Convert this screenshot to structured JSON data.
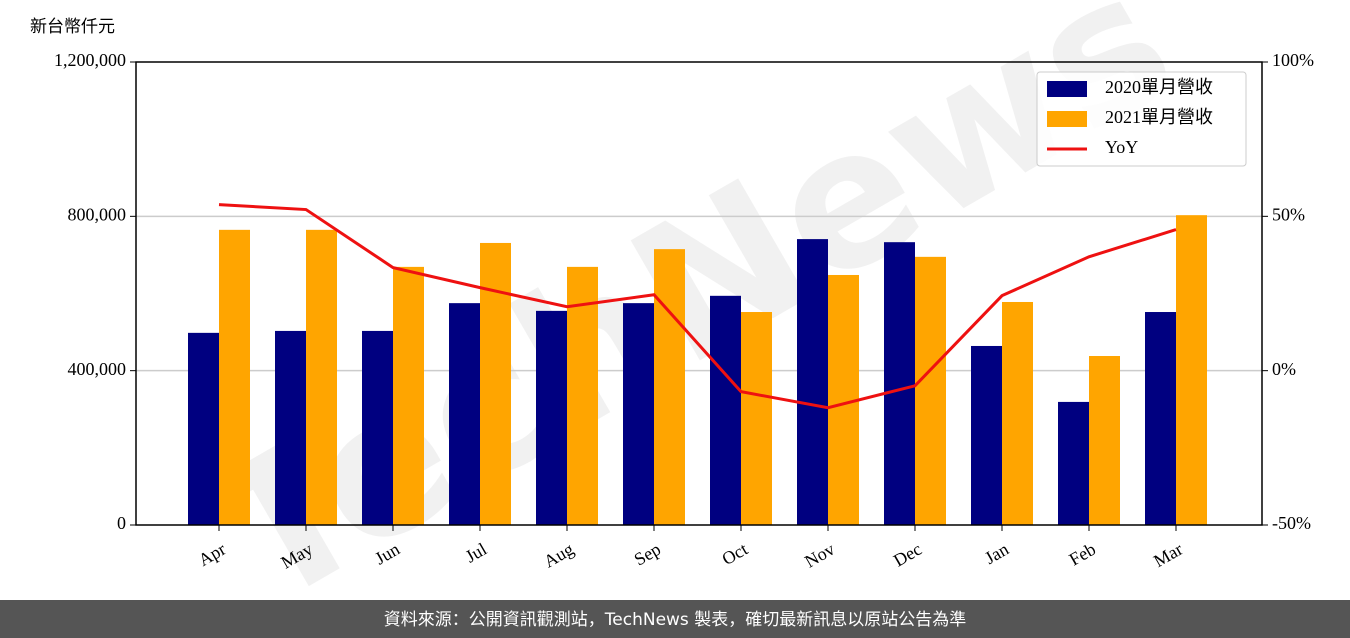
{
  "chart_data": {
    "type": "bar-line",
    "y_label": "新台幣仟元",
    "watermark": "TechNews",
    "footer": "資料來源：公開資訊觀測站，TechNews 製表，確切最新訊息以原站公告為準",
    "categories": [
      "Apr",
      "May",
      "Jun",
      "Jul",
      "Aug",
      "Sep",
      "Oct",
      "Nov",
      "Dec",
      "Jan",
      "Feb",
      "Mar"
    ],
    "series": [
      {
        "name": "2020單月營收",
        "color": "#000080",
        "values": [
          498000,
          503000,
          503000,
          575000,
          555000,
          575000,
          594000,
          741000,
          733000,
          464000,
          319000,
          552000
        ]
      },
      {
        "name": "2021單月營收",
        "color": "#ffa500",
        "values": [
          765000,
          765000,
          669000,
          731000,
          669000,
          715000,
          552000,
          648000,
          695000,
          578000,
          438000,
          803000
        ]
      },
      {
        "name": "YoY",
        "color": "#ee1111",
        "axis": "y2",
        "values": [
          53.8,
          52.2,
          33.4,
          26.9,
          20.7,
          24.6,
          -6.8,
          -12.0,
          -4.9,
          24.3,
          36.9,
          45.7
        ]
      }
    ],
    "ylim": [
      0,
      1200000
    ],
    "yticks": [
      0,
      {
        "value": 400000,
        "label": "400,000"
      },
      {
        "value": 800000,
        "label": "800,000"
      },
      {
        "value": 1200000,
        "label": "1,200,000"
      }
    ],
    "y2lim": [
      -50,
      100
    ],
    "y2ticks": [
      {
        "value": -50,
        "label": "-50%"
      },
      {
        "value": 0,
        "label": "0%"
      },
      {
        "value": 50,
        "label": "50%"
      },
      {
        "value": 100,
        "label": "100%"
      }
    ],
    "grid": true,
    "legend": "upper right"
  }
}
